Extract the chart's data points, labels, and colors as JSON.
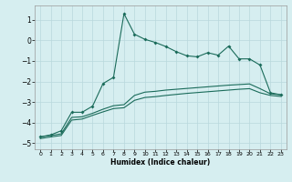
{
  "xlabel": "Humidex (Indice chaleur)",
  "bg_color": "#d6eef0",
  "grid_color": "#b8d8dc",
  "line_color": "#1a6b5a",
  "xlim": [
    -0.5,
    23.5
  ],
  "ylim": [
    -5.3,
    1.7
  ],
  "xticks": [
    0,
    1,
    2,
    3,
    4,
    5,
    6,
    7,
    8,
    9,
    10,
    11,
    12,
    13,
    14,
    15,
    16,
    17,
    18,
    19,
    20,
    21,
    22,
    23
  ],
  "yticks": [
    -5,
    -4,
    -3,
    -2,
    -1,
    0,
    1
  ],
  "y_top": [
    -4.7,
    -4.6,
    -4.4,
    -3.5,
    -3.5,
    -3.2,
    -2.1,
    -1.8,
    1.3,
    0.3,
    0.05,
    -0.1,
    -0.3,
    -0.55,
    -0.75,
    -0.8,
    -0.6,
    -0.72,
    -0.28,
    -0.9,
    -0.9,
    -1.2,
    -2.55,
    -2.65
  ],
  "y_mid": [
    -4.7,
    -4.63,
    -4.55,
    -3.75,
    -3.72,
    -3.55,
    -3.35,
    -3.18,
    -3.13,
    -2.68,
    -2.52,
    -2.48,
    -2.42,
    -2.38,
    -2.34,
    -2.3,
    -2.26,
    -2.22,
    -2.18,
    -2.15,
    -2.12,
    -2.35,
    -2.6,
    -2.65
  ],
  "y_bot": [
    -4.78,
    -4.7,
    -4.63,
    -3.88,
    -3.83,
    -3.65,
    -3.48,
    -3.32,
    -3.28,
    -2.92,
    -2.78,
    -2.74,
    -2.68,
    -2.63,
    -2.58,
    -2.54,
    -2.5,
    -2.46,
    -2.42,
    -2.38,
    -2.35,
    -2.55,
    -2.68,
    -2.73
  ]
}
